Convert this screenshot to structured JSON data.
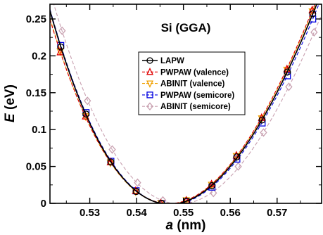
{
  "chart_data": {
    "type": "line",
    "title": "Si (GGA)",
    "xlabel": {
      "var": "a",
      "unit": " (nm)"
    },
    "ylabel": {
      "var": "E",
      "unit": " (eV)"
    },
    "xlim": [
      0.5215,
      0.5795
    ],
    "ylim": [
      0,
      0.27
    ],
    "x_ticks": [
      0.53,
      0.54,
      0.55,
      0.56,
      0.57
    ],
    "x_tick_labels": [
      "0.53",
      "0.54",
      "0.55",
      "0.56",
      "0.57"
    ],
    "y_ticks": [
      0,
      0.05,
      0.1,
      0.15,
      0.2,
      0.25
    ],
    "y_tick_labels": [
      "0",
      "0.05",
      "0.1",
      "0.15",
      "0.2",
      "0.25"
    ],
    "legend_position": "center",
    "series": [
      {
        "name": "LAPW",
        "color": "#000000",
        "marker": "circle",
        "line": "solid",
        "x": [
          0.5238,
          0.5292,
          0.5345,
          0.5399,
          0.5453,
          0.5507,
          0.5561,
          0.5614,
          0.5668,
          0.5722,
          0.5776
        ],
        "y": [
          0.212,
          0.121,
          0.056,
          0.016,
          0.0,
          0.003,
          0.024,
          0.063,
          0.113,
          0.178,
          0.257
        ]
      },
      {
        "name": "PWPAW (valence)",
        "color": "#e00000",
        "marker": "triangle-up",
        "line": "dashed",
        "x": [
          0.5237,
          0.5291,
          0.5344,
          0.5398,
          0.5452,
          0.5506,
          0.556,
          0.5613,
          0.5667,
          0.5721,
          0.5775
        ],
        "y": [
          0.205,
          0.118,
          0.056,
          0.017,
          0.0,
          0.004,
          0.026,
          0.065,
          0.116,
          0.182,
          0.262
        ]
      },
      {
        "name": "ABINIT (valence)",
        "color": "#f0a000",
        "marker": "triangle-down",
        "line": "dashed",
        "x": [
          0.5237,
          0.5291,
          0.5344,
          0.5398,
          0.5452,
          0.5506,
          0.556,
          0.5613,
          0.5667,
          0.5721,
          0.5775
        ],
        "y": [
          0.206,
          0.118,
          0.055,
          0.016,
          0.0,
          0.004,
          0.025,
          0.064,
          0.115,
          0.181,
          0.26
        ]
      },
      {
        "name": "PWPAW (semicore)",
        "color": "#0000e0",
        "marker": "square",
        "line": "dashed",
        "x": [
          0.5238,
          0.5292,
          0.5345,
          0.5399,
          0.5453,
          0.5507,
          0.5561,
          0.5614,
          0.5668,
          0.5722,
          0.5776
        ],
        "y": [
          0.214,
          0.123,
          0.057,
          0.017,
          0.0,
          0.002,
          0.022,
          0.06,
          0.109,
          0.173,
          0.25
        ]
      },
      {
        "name": "ABINIT (semicore)",
        "color": "#c8a0b0",
        "marker": "diamond",
        "line": "dashed",
        "x": [
          0.5241,
          0.5295,
          0.5348,
          0.5402,
          0.5456,
          0.551,
          0.5564,
          0.5617,
          0.5671,
          0.5725,
          0.5779
        ],
        "y": [
          0.234,
          0.139,
          0.073,
          0.028,
          0.004,
          0.0,
          0.014,
          0.05,
          0.096,
          0.158,
          0.232
        ]
      }
    ]
  }
}
